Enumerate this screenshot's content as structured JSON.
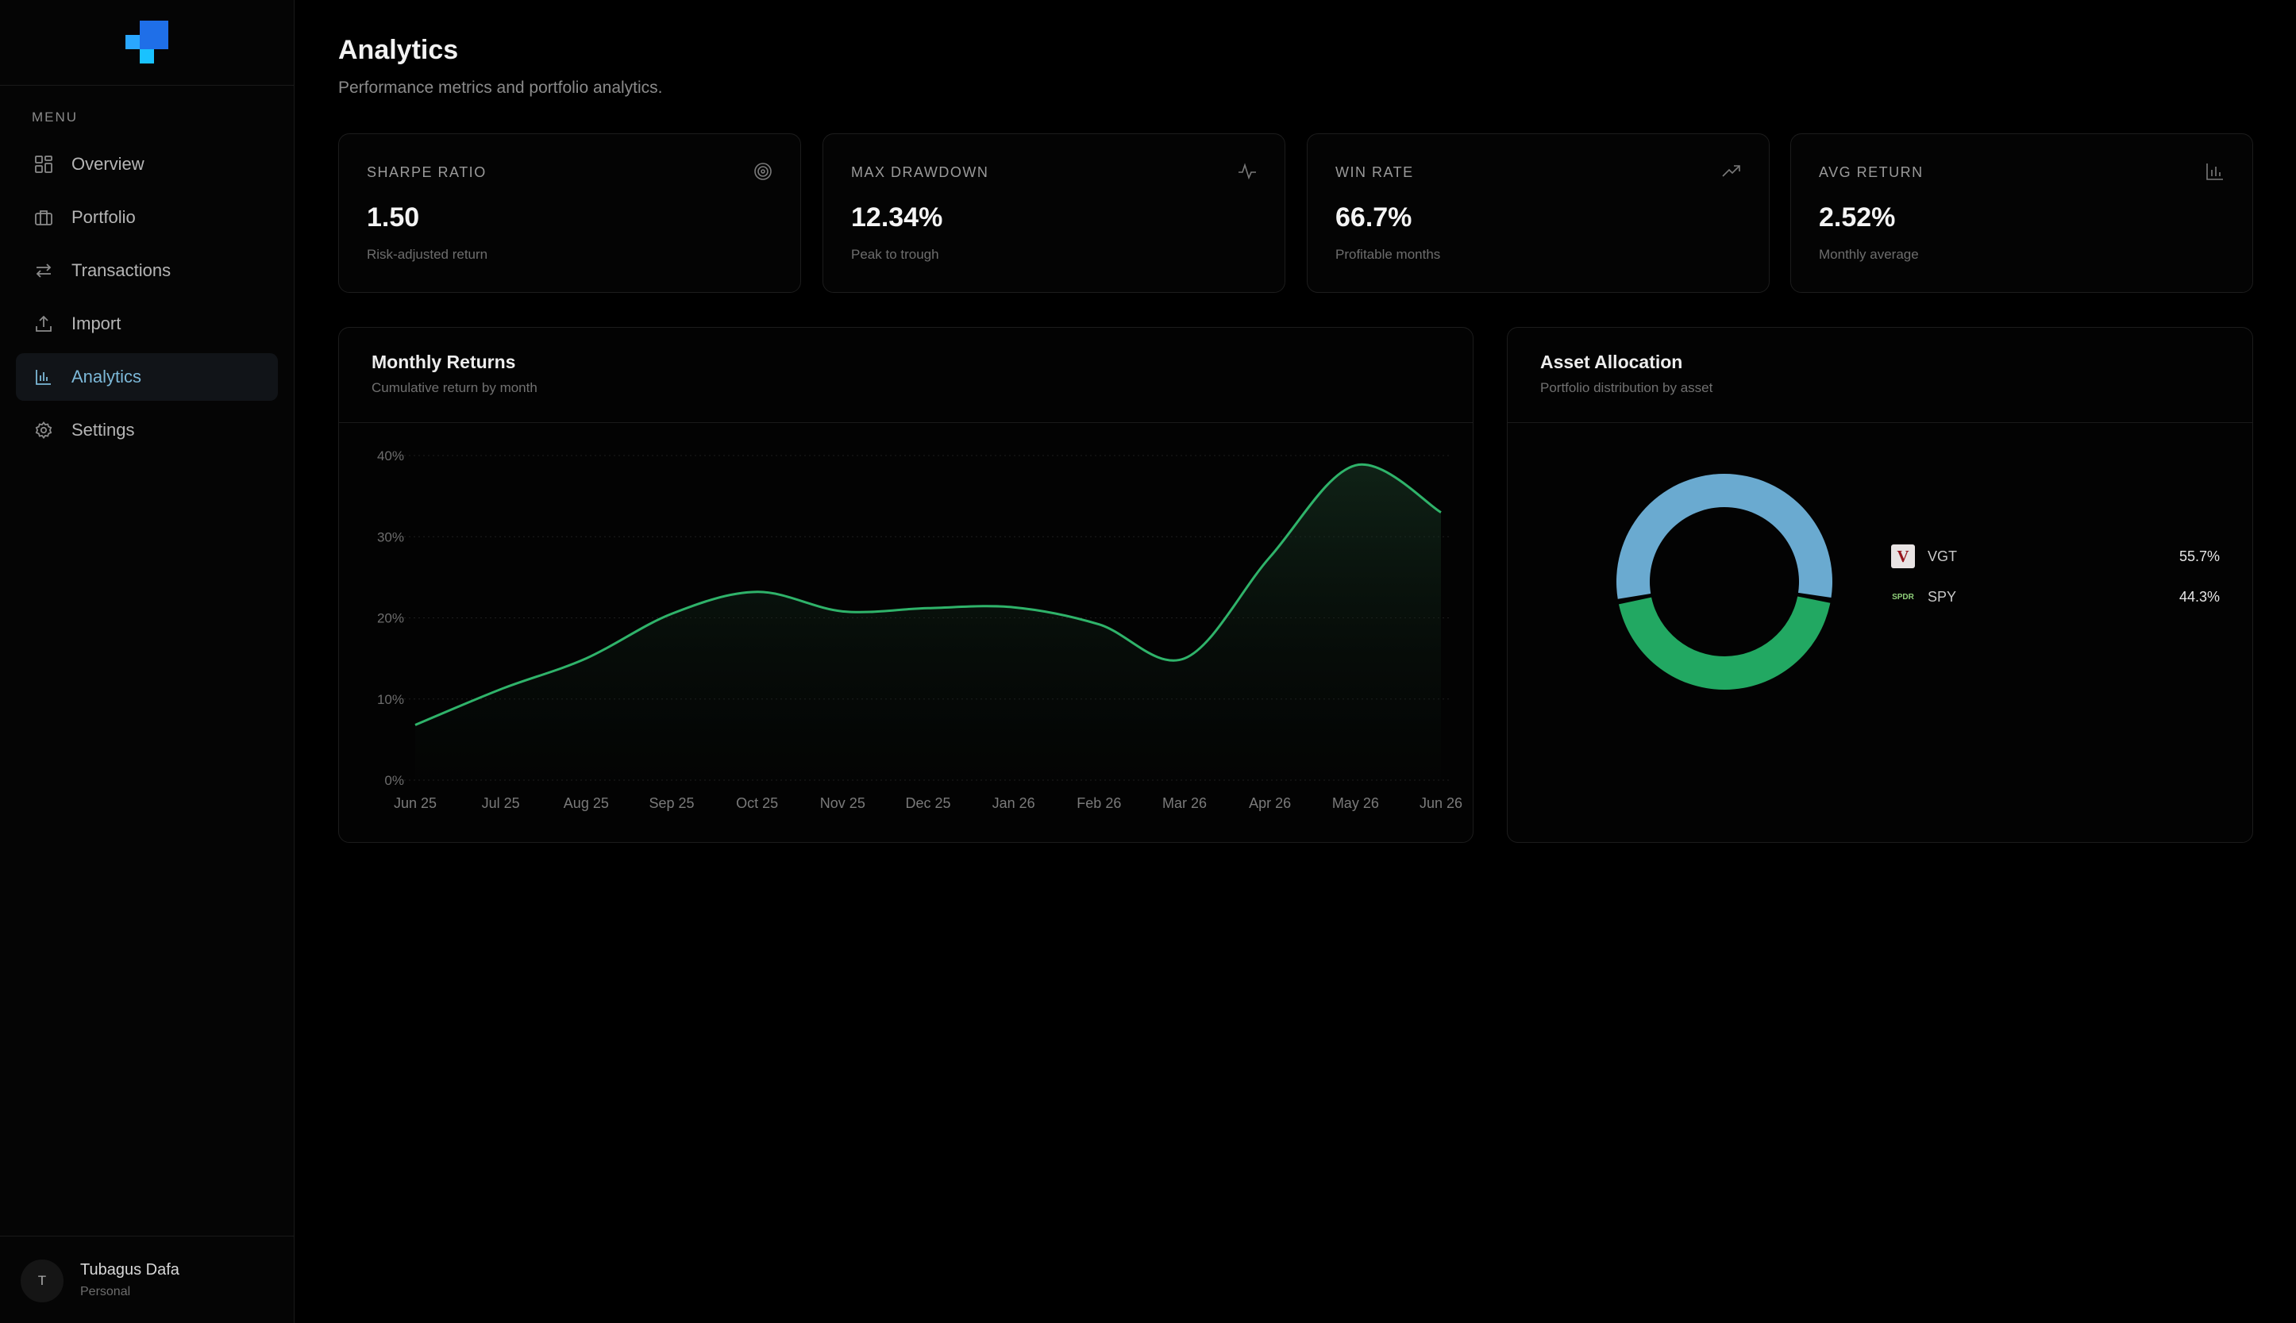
{
  "sidebar": {
    "menu_title": "MENU",
    "items": [
      {
        "label": "Overview",
        "icon": "grid-icon"
      },
      {
        "label": "Portfolio",
        "icon": "briefcase-icon"
      },
      {
        "label": "Transactions",
        "icon": "swap-icon"
      },
      {
        "label": "Import",
        "icon": "upload-icon"
      },
      {
        "label": "Analytics",
        "icon": "bar-chart-icon",
        "active": true
      },
      {
        "label": "Settings",
        "icon": "gear-icon"
      }
    ],
    "user": {
      "initial": "T",
      "name": "Tubagus Dafa",
      "role": "Personal"
    }
  },
  "header": {
    "title": "Analytics",
    "subtitle": "Performance metrics and portfolio analytics."
  },
  "stats": [
    {
      "label": "SHARPE RATIO",
      "value": "1.50",
      "desc": "Risk-adjusted return",
      "icon": "target-icon"
    },
    {
      "label": "MAX DRAWDOWN",
      "value": "12.34%",
      "desc": "Peak to trough",
      "icon": "activity-icon"
    },
    {
      "label": "WIN RATE",
      "value": "66.7%",
      "desc": "Profitable months",
      "icon": "trending-up-icon"
    },
    {
      "label": "AVG RETURN",
      "value": "2.52%",
      "desc": "Monthly average",
      "icon": "bar-chart-icon"
    }
  ],
  "monthly_returns": {
    "title": "Monthly Returns",
    "subtitle": "Cumulative return by month"
  },
  "asset_allocation": {
    "title": "Asset Allocation",
    "subtitle": "Portfolio distribution by asset",
    "items": [
      {
        "name": "VGT",
        "value": "55.7%",
        "badge": "V",
        "color": "#6aaad0"
      },
      {
        "name": "SPY",
        "value": "44.3%",
        "badge": "SPDR",
        "color": "#22a862"
      }
    ]
  },
  "colors": {
    "accent": "#7cb8d8",
    "line": "#2fb36a",
    "vgt": "#6aaad0",
    "spy": "#22a862"
  },
  "chart_data": [
    {
      "type": "area",
      "x": [
        "Jun 25",
        "Jul 25",
        "Aug 25",
        "Sep 25",
        "Oct 25",
        "Nov 25",
        "Dec 25",
        "Jan 26",
        "Feb 26",
        "Mar 26",
        "Apr 26",
        "May 26",
        "Jun 26"
      ],
      "series": [
        {
          "values": [
            6.8,
            11.2,
            15.0,
            20.5,
            23.2,
            20.8,
            21.2,
            21.3,
            19.2,
            15.0,
            27.5,
            38.8,
            33.0
          ]
        }
      ],
      "y_ticks": [
        "0%",
        "10%",
        "20%",
        "30%",
        "40%"
      ],
      "ylim": [
        0,
        40
      ],
      "grid": "horizontal dotted"
    },
    {
      "type": "pie",
      "categories": [
        "VGT",
        "SPY"
      ],
      "values": [
        55.7,
        44.3
      ],
      "donut": true
    }
  ]
}
